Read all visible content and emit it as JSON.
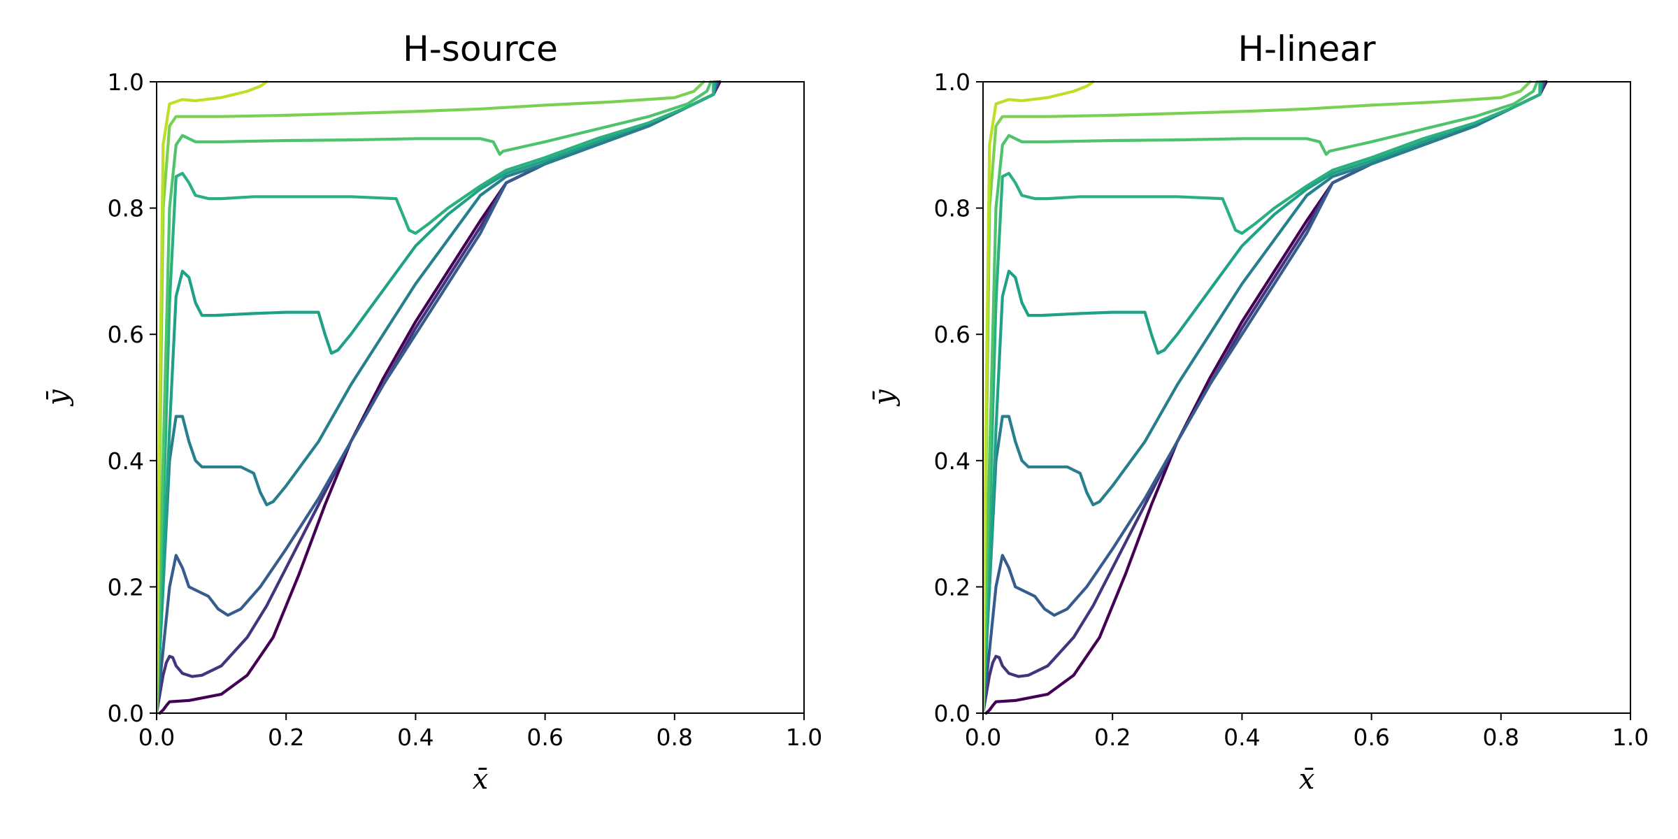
{
  "chart_data": [
    {
      "type": "line",
      "title": "H-source",
      "xlabel": "x̄",
      "ylabel": "ȳ",
      "xlim": [
        0.0,
        1.0
      ],
      "ylim": [
        0.0,
        1.0
      ],
      "xticks": [
        "0.0",
        "0.2",
        "0.4",
        "0.6",
        "0.8",
        "1.0"
      ],
      "yticks": [
        "0.0",
        "0.2",
        "0.4",
        "0.6",
        "0.8",
        "1.0"
      ],
      "grid": false,
      "legend": "none",
      "series": [
        {
          "color": "#440154",
          "x": [
            0.005,
            0.01,
            0.015,
            0.02,
            0.05,
            0.1,
            0.14,
            0.18,
            0.22,
            0.26,
            0.3,
            0.35,
            0.4,
            0.45,
            0.5,
            0.54,
            0.6,
            0.68,
            0.76,
            0.82,
            0.86,
            0.87
          ],
          "y": [
            0.0,
            0.005,
            0.012,
            0.018,
            0.02,
            0.03,
            0.06,
            0.12,
            0.22,
            0.33,
            0.43,
            0.53,
            0.62,
            0.7,
            0.78,
            0.84,
            0.87,
            0.9,
            0.93,
            0.96,
            0.98,
            1.0
          ]
        },
        {
          "color": "#46337e",
          "x": [
            0.0,
            0.005,
            0.01,
            0.015,
            0.02,
            0.025,
            0.03,
            0.04,
            0.055,
            0.07,
            0.1,
            0.14,
            0.17,
            0.2,
            0.25,
            0.3,
            0.35,
            0.4,
            0.45,
            0.5,
            0.54,
            0.6,
            0.68,
            0.76,
            0.82,
            0.86,
            0.868
          ],
          "y": [
            0.0,
            0.03,
            0.06,
            0.08,
            0.09,
            0.088,
            0.075,
            0.063,
            0.058,
            0.06,
            0.075,
            0.12,
            0.17,
            0.23,
            0.33,
            0.43,
            0.52,
            0.61,
            0.69,
            0.77,
            0.84,
            0.87,
            0.9,
            0.93,
            0.96,
            0.98,
            1.0
          ]
        },
        {
          "color": "#365c8d",
          "x": [
            0.0,
            0.005,
            0.01,
            0.02,
            0.03,
            0.04,
            0.05,
            0.06,
            0.08,
            0.095,
            0.11,
            0.13,
            0.16,
            0.2,
            0.25,
            0.3,
            0.35,
            0.4,
            0.45,
            0.5,
            0.54,
            0.6,
            0.68,
            0.76,
            0.82,
            0.86,
            0.866
          ],
          "y": [
            0.0,
            0.05,
            0.1,
            0.2,
            0.25,
            0.23,
            0.2,
            0.195,
            0.185,
            0.165,
            0.155,
            0.165,
            0.2,
            0.26,
            0.34,
            0.43,
            0.52,
            0.6,
            0.68,
            0.76,
            0.84,
            0.87,
            0.9,
            0.93,
            0.96,
            0.98,
            1.0
          ]
        },
        {
          "color": "#277f8e",
          "x": [
            0.0,
            0.005,
            0.01,
            0.02,
            0.03,
            0.04,
            0.05,
            0.06,
            0.07,
            0.1,
            0.13,
            0.15,
            0.16,
            0.17,
            0.18,
            0.2,
            0.25,
            0.3,
            0.35,
            0.4,
            0.45,
            0.5,
            0.54,
            0.6,
            0.68,
            0.76,
            0.82,
            0.86,
            0.864
          ],
          "y": [
            0.0,
            0.1,
            0.2,
            0.4,
            0.47,
            0.47,
            0.43,
            0.4,
            0.39,
            0.39,
            0.39,
            0.38,
            0.35,
            0.33,
            0.335,
            0.36,
            0.43,
            0.52,
            0.6,
            0.68,
            0.75,
            0.82,
            0.85,
            0.87,
            0.9,
            0.93,
            0.96,
            0.98,
            1.0
          ]
        },
        {
          "color": "#1fa187",
          "x": [
            0.0,
            0.01,
            0.02,
            0.03,
            0.04,
            0.05,
            0.06,
            0.07,
            0.09,
            0.15,
            0.2,
            0.25,
            0.26,
            0.27,
            0.28,
            0.3,
            0.35,
            0.4,
            0.45,
            0.5,
            0.54,
            0.6,
            0.68,
            0.76,
            0.82,
            0.86,
            0.862
          ],
          "y": [
            0.0,
            0.2,
            0.45,
            0.66,
            0.7,
            0.69,
            0.65,
            0.63,
            0.63,
            0.633,
            0.635,
            0.635,
            0.6,
            0.57,
            0.575,
            0.6,
            0.67,
            0.74,
            0.79,
            0.83,
            0.855,
            0.875,
            0.905,
            0.935,
            0.96,
            0.98,
            1.0
          ]
        },
        {
          "color": "#2ab07f",
          "x": [
            0.0,
            0.01,
            0.02,
            0.03,
            0.04,
            0.05,
            0.06,
            0.08,
            0.1,
            0.15,
            0.2,
            0.3,
            0.37,
            0.38,
            0.39,
            0.4,
            0.42,
            0.45,
            0.5,
            0.54,
            0.6,
            0.68,
            0.76,
            0.82,
            0.86,
            0.86
          ],
          "y": [
            0.0,
            0.3,
            0.65,
            0.85,
            0.855,
            0.84,
            0.82,
            0.815,
            0.815,
            0.818,
            0.818,
            0.818,
            0.815,
            0.79,
            0.765,
            0.76,
            0.775,
            0.8,
            0.835,
            0.86,
            0.88,
            0.91,
            0.935,
            0.96,
            0.98,
            1.0
          ]
        },
        {
          "color": "#4ec36b",
          "x": [
            0.0,
            0.01,
            0.02,
            0.03,
            0.04,
            0.06,
            0.1,
            0.2,
            0.3,
            0.4,
            0.5,
            0.52,
            0.525,
            0.53,
            0.535,
            0.6,
            0.68,
            0.76,
            0.82,
            0.85,
            0.856
          ],
          "y": [
            0.0,
            0.4,
            0.8,
            0.9,
            0.915,
            0.905,
            0.905,
            0.907,
            0.908,
            0.91,
            0.91,
            0.905,
            0.895,
            0.885,
            0.89,
            0.905,
            0.925,
            0.945,
            0.965,
            0.985,
            1.0
          ]
        },
        {
          "color": "#7ad151",
          "x": [
            0.0,
            0.005,
            0.01,
            0.02,
            0.03,
            0.05,
            0.1,
            0.2,
            0.3,
            0.4,
            0.5,
            0.6,
            0.7,
            0.8,
            0.83,
            0.845
          ],
          "y": [
            0.0,
            0.4,
            0.8,
            0.93,
            0.945,
            0.945,
            0.945,
            0.947,
            0.95,
            0.953,
            0.957,
            0.963,
            0.968,
            0.975,
            0.985,
            1.0
          ]
        },
        {
          "color": "#bddf26",
          "x": [
            0.0,
            0.005,
            0.01,
            0.02,
            0.04,
            0.06,
            0.1,
            0.14,
            0.16,
            0.17
          ],
          "y": [
            0.0,
            0.5,
            0.9,
            0.965,
            0.972,
            0.97,
            0.975,
            0.985,
            0.993,
            1.0
          ]
        }
      ]
    },
    {
      "type": "line",
      "title": "H-linear",
      "xlabel": "x̄",
      "ylabel": "ȳ",
      "xlim": [
        0.0,
        1.0
      ],
      "ylim": [
        0.0,
        1.0
      ],
      "xticks": [
        "0.0",
        "0.2",
        "0.4",
        "0.6",
        "0.8",
        "1.0"
      ],
      "yticks": [
        "0.0",
        "0.2",
        "0.4",
        "0.6",
        "0.8",
        "1.0"
      ],
      "grid": false,
      "legend": "none",
      "series": [
        {
          "color": "#440154",
          "x": [
            0.005,
            0.01,
            0.015,
            0.02,
            0.05,
            0.1,
            0.14,
            0.18,
            0.22,
            0.26,
            0.3,
            0.35,
            0.4,
            0.45,
            0.5,
            0.54,
            0.6,
            0.68,
            0.76,
            0.82,
            0.86,
            0.87
          ],
          "y": [
            0.0,
            0.005,
            0.012,
            0.018,
            0.02,
            0.03,
            0.06,
            0.12,
            0.22,
            0.33,
            0.43,
            0.53,
            0.62,
            0.7,
            0.78,
            0.84,
            0.87,
            0.9,
            0.93,
            0.96,
            0.98,
            1.0
          ]
        },
        {
          "color": "#46337e",
          "x": [
            0.0,
            0.005,
            0.01,
            0.015,
            0.02,
            0.025,
            0.03,
            0.04,
            0.055,
            0.07,
            0.1,
            0.14,
            0.17,
            0.2,
            0.25,
            0.3,
            0.35,
            0.4,
            0.45,
            0.5,
            0.54,
            0.6,
            0.68,
            0.76,
            0.82,
            0.86,
            0.868
          ],
          "y": [
            0.0,
            0.03,
            0.06,
            0.08,
            0.09,
            0.088,
            0.075,
            0.063,
            0.058,
            0.06,
            0.075,
            0.12,
            0.17,
            0.23,
            0.33,
            0.43,
            0.52,
            0.61,
            0.69,
            0.77,
            0.84,
            0.87,
            0.9,
            0.93,
            0.96,
            0.98,
            1.0
          ]
        },
        {
          "color": "#365c8d",
          "x": [
            0.0,
            0.005,
            0.01,
            0.02,
            0.03,
            0.04,
            0.05,
            0.06,
            0.08,
            0.095,
            0.11,
            0.13,
            0.16,
            0.2,
            0.25,
            0.3,
            0.35,
            0.4,
            0.45,
            0.5,
            0.54,
            0.6,
            0.68,
            0.76,
            0.82,
            0.86,
            0.866
          ],
          "y": [
            0.0,
            0.05,
            0.1,
            0.2,
            0.25,
            0.23,
            0.2,
            0.195,
            0.185,
            0.165,
            0.155,
            0.165,
            0.2,
            0.26,
            0.34,
            0.43,
            0.52,
            0.6,
            0.68,
            0.76,
            0.84,
            0.87,
            0.9,
            0.93,
            0.96,
            0.98,
            1.0
          ]
        },
        {
          "color": "#277f8e",
          "x": [
            0.0,
            0.005,
            0.01,
            0.02,
            0.03,
            0.04,
            0.05,
            0.06,
            0.07,
            0.1,
            0.13,
            0.15,
            0.16,
            0.17,
            0.18,
            0.2,
            0.25,
            0.3,
            0.35,
            0.4,
            0.45,
            0.5,
            0.54,
            0.6,
            0.68,
            0.76,
            0.82,
            0.86,
            0.864
          ],
          "y": [
            0.0,
            0.1,
            0.2,
            0.4,
            0.47,
            0.47,
            0.43,
            0.4,
            0.39,
            0.39,
            0.39,
            0.38,
            0.35,
            0.33,
            0.335,
            0.36,
            0.43,
            0.52,
            0.6,
            0.68,
            0.75,
            0.82,
            0.85,
            0.87,
            0.9,
            0.93,
            0.96,
            0.98,
            1.0
          ]
        },
        {
          "color": "#1fa187",
          "x": [
            0.0,
            0.01,
            0.02,
            0.03,
            0.04,
            0.05,
            0.06,
            0.07,
            0.09,
            0.15,
            0.2,
            0.25,
            0.26,
            0.27,
            0.28,
            0.3,
            0.35,
            0.4,
            0.45,
            0.5,
            0.54,
            0.6,
            0.68,
            0.76,
            0.82,
            0.86,
            0.862
          ],
          "y": [
            0.0,
            0.2,
            0.45,
            0.66,
            0.7,
            0.69,
            0.65,
            0.63,
            0.63,
            0.633,
            0.635,
            0.635,
            0.6,
            0.57,
            0.575,
            0.6,
            0.67,
            0.74,
            0.79,
            0.83,
            0.855,
            0.875,
            0.905,
            0.935,
            0.96,
            0.98,
            1.0
          ]
        },
        {
          "color": "#2ab07f",
          "x": [
            0.0,
            0.01,
            0.02,
            0.03,
            0.04,
            0.05,
            0.06,
            0.08,
            0.1,
            0.15,
            0.2,
            0.3,
            0.37,
            0.38,
            0.39,
            0.4,
            0.42,
            0.45,
            0.5,
            0.54,
            0.6,
            0.68,
            0.76,
            0.82,
            0.86,
            0.86
          ],
          "y": [
            0.0,
            0.3,
            0.65,
            0.85,
            0.855,
            0.84,
            0.82,
            0.815,
            0.815,
            0.818,
            0.818,
            0.818,
            0.815,
            0.79,
            0.765,
            0.76,
            0.775,
            0.8,
            0.835,
            0.86,
            0.88,
            0.91,
            0.935,
            0.96,
            0.98,
            1.0
          ]
        },
        {
          "color": "#4ec36b",
          "x": [
            0.0,
            0.01,
            0.02,
            0.03,
            0.04,
            0.06,
            0.1,
            0.2,
            0.3,
            0.4,
            0.5,
            0.52,
            0.525,
            0.53,
            0.535,
            0.6,
            0.68,
            0.76,
            0.82,
            0.85,
            0.856
          ],
          "y": [
            0.0,
            0.4,
            0.8,
            0.9,
            0.915,
            0.905,
            0.905,
            0.907,
            0.908,
            0.91,
            0.91,
            0.905,
            0.895,
            0.885,
            0.89,
            0.905,
            0.925,
            0.945,
            0.965,
            0.985,
            1.0
          ]
        },
        {
          "color": "#7ad151",
          "x": [
            0.0,
            0.005,
            0.01,
            0.02,
            0.03,
            0.05,
            0.1,
            0.2,
            0.3,
            0.4,
            0.5,
            0.6,
            0.7,
            0.8,
            0.83,
            0.845
          ],
          "y": [
            0.0,
            0.4,
            0.8,
            0.93,
            0.945,
            0.945,
            0.945,
            0.947,
            0.95,
            0.953,
            0.957,
            0.963,
            0.968,
            0.975,
            0.985,
            1.0
          ]
        },
        {
          "color": "#bddf26",
          "x": [
            0.0,
            0.005,
            0.01,
            0.02,
            0.04,
            0.06,
            0.1,
            0.14,
            0.16,
            0.17
          ],
          "y": [
            0.0,
            0.5,
            0.9,
            0.965,
            0.972,
            0.97,
            0.975,
            0.985,
            0.993,
            1.0
          ]
        }
      ]
    }
  ]
}
